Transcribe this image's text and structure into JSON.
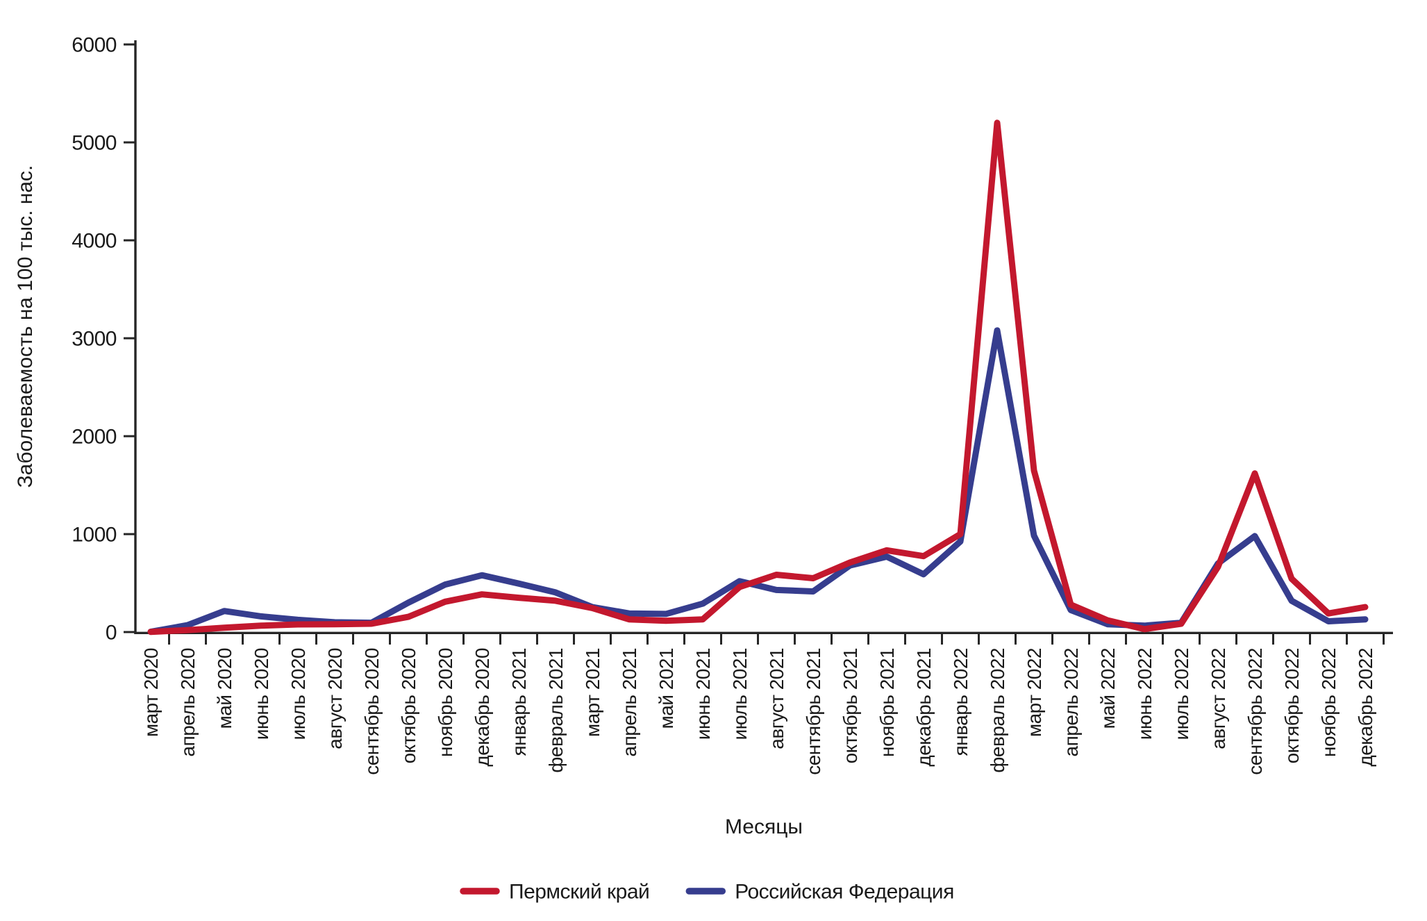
{
  "chart_data": {
    "type": "line",
    "title": "",
    "xlabel": "Месяцы",
    "ylabel": "Заболеваемость на 100 тыс. нас.",
    "ylim": [
      0,
      6000
    ],
    "yticks": [
      0,
      1000,
      2000,
      3000,
      4000,
      5000,
      6000
    ],
    "grid": false,
    "legend_position": "bottom",
    "categories": [
      "март 2020",
      "апрель 2020",
      "май 2020",
      "июнь 2020",
      "июль 2020",
      "август 2020",
      "сентябрь 2020",
      "октябрь 2020",
      "ноябрь 2020",
      "декабрь 2020",
      "январь 2021",
      "февраль 2021",
      "март 2021",
      "апрель 2021",
      "май 2021",
      "июнь 2021",
      "июль 2021",
      "август 2021",
      "сентябрь 2021",
      "октябрь 2021",
      "ноябрь 2021",
      "декабрь 2021",
      "январь 2022",
      "февраль 2022",
      "март 2022",
      "апрель 2022",
      "май 2022",
      "июнь 2022",
      "июль 2022",
      "август 2022",
      "сентябрь 2022",
      "октябрь 2022",
      "ноябрь 2022",
      "декабрь 2022"
    ],
    "series": [
      {
        "name": "Пермский край",
        "color": "#C3182E",
        "values": [
          2,
          20,
          45,
          65,
          78,
          80,
          85,
          155,
          310,
          385,
          350,
          320,
          245,
          130,
          115,
          130,
          460,
          585,
          550,
          710,
          835,
          775,
          1000,
          5200,
          1650,
          280,
          120,
          30,
          85,
          665,
          1620,
          545,
          190,
          255
        ]
      },
      {
        "name": "Российская Федерация",
        "color": "#363D8E",
        "values": [
          3,
          70,
          215,
          160,
          125,
          100,
          95,
          300,
          485,
          580,
          495,
          405,
          255,
          190,
          185,
          290,
          520,
          430,
          415,
          680,
          770,
          590,
          925,
          3080,
          985,
          225,
          80,
          65,
          95,
          700,
          980,
          320,
          110,
          130
        ]
      }
    ]
  },
  "colors": {
    "axis": "#262626",
    "text": "#1a1a1a",
    "background": "#ffffff"
  }
}
